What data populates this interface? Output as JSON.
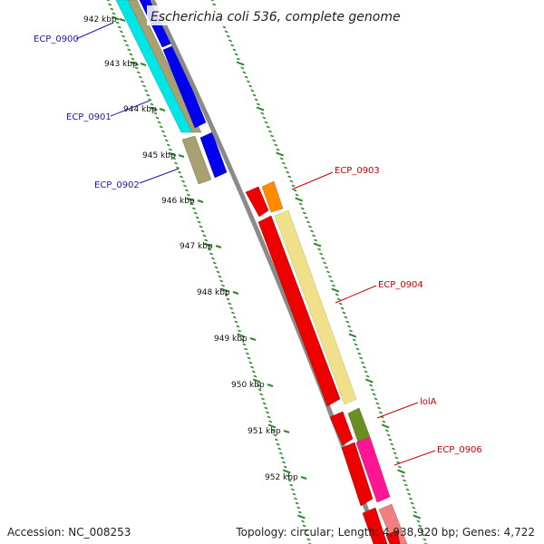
{
  "title": "Escherichia coli 536, complete genome",
  "footer": {
    "accession": "Accession: NC_008253",
    "topology": "Topology: circular; Length: 4,938,920 bp; Genes: 4,722"
  },
  "kbp_labels": [
    "942 kbp",
    "943 kbp",
    "944 kbp",
    "945 kbp",
    "946 kbp",
    "947 kbp",
    "948 kbp",
    "949 kbp",
    "950 kbp",
    "951 kbp",
    "952 kbp"
  ],
  "colors": {
    "backbone": "#8a8a8a",
    "tick": "#2a8a2a",
    "left_label": "#1a1aa0",
    "right_label": "#cc0000"
  },
  "genes": [
    {
      "label": "ECP_0900",
      "side": "left",
      "color": "#0000ee"
    },
    {
      "label": "ECP_0901",
      "side": "left",
      "color": "#0000ee"
    },
    {
      "label": "ECP_0902",
      "side": "left",
      "color": "#0000ee"
    },
    {
      "label": "ECP_0903",
      "side": "right",
      "color": "#ff8c00"
    },
    {
      "label": "ECP_0904",
      "side": "right",
      "color": "#f0e08a"
    },
    {
      "label": "lolA",
      "side": "right",
      "color": "#6b8e23"
    },
    {
      "label": "ECP_0906",
      "side": "right",
      "color": "#ff1493"
    }
  ]
}
